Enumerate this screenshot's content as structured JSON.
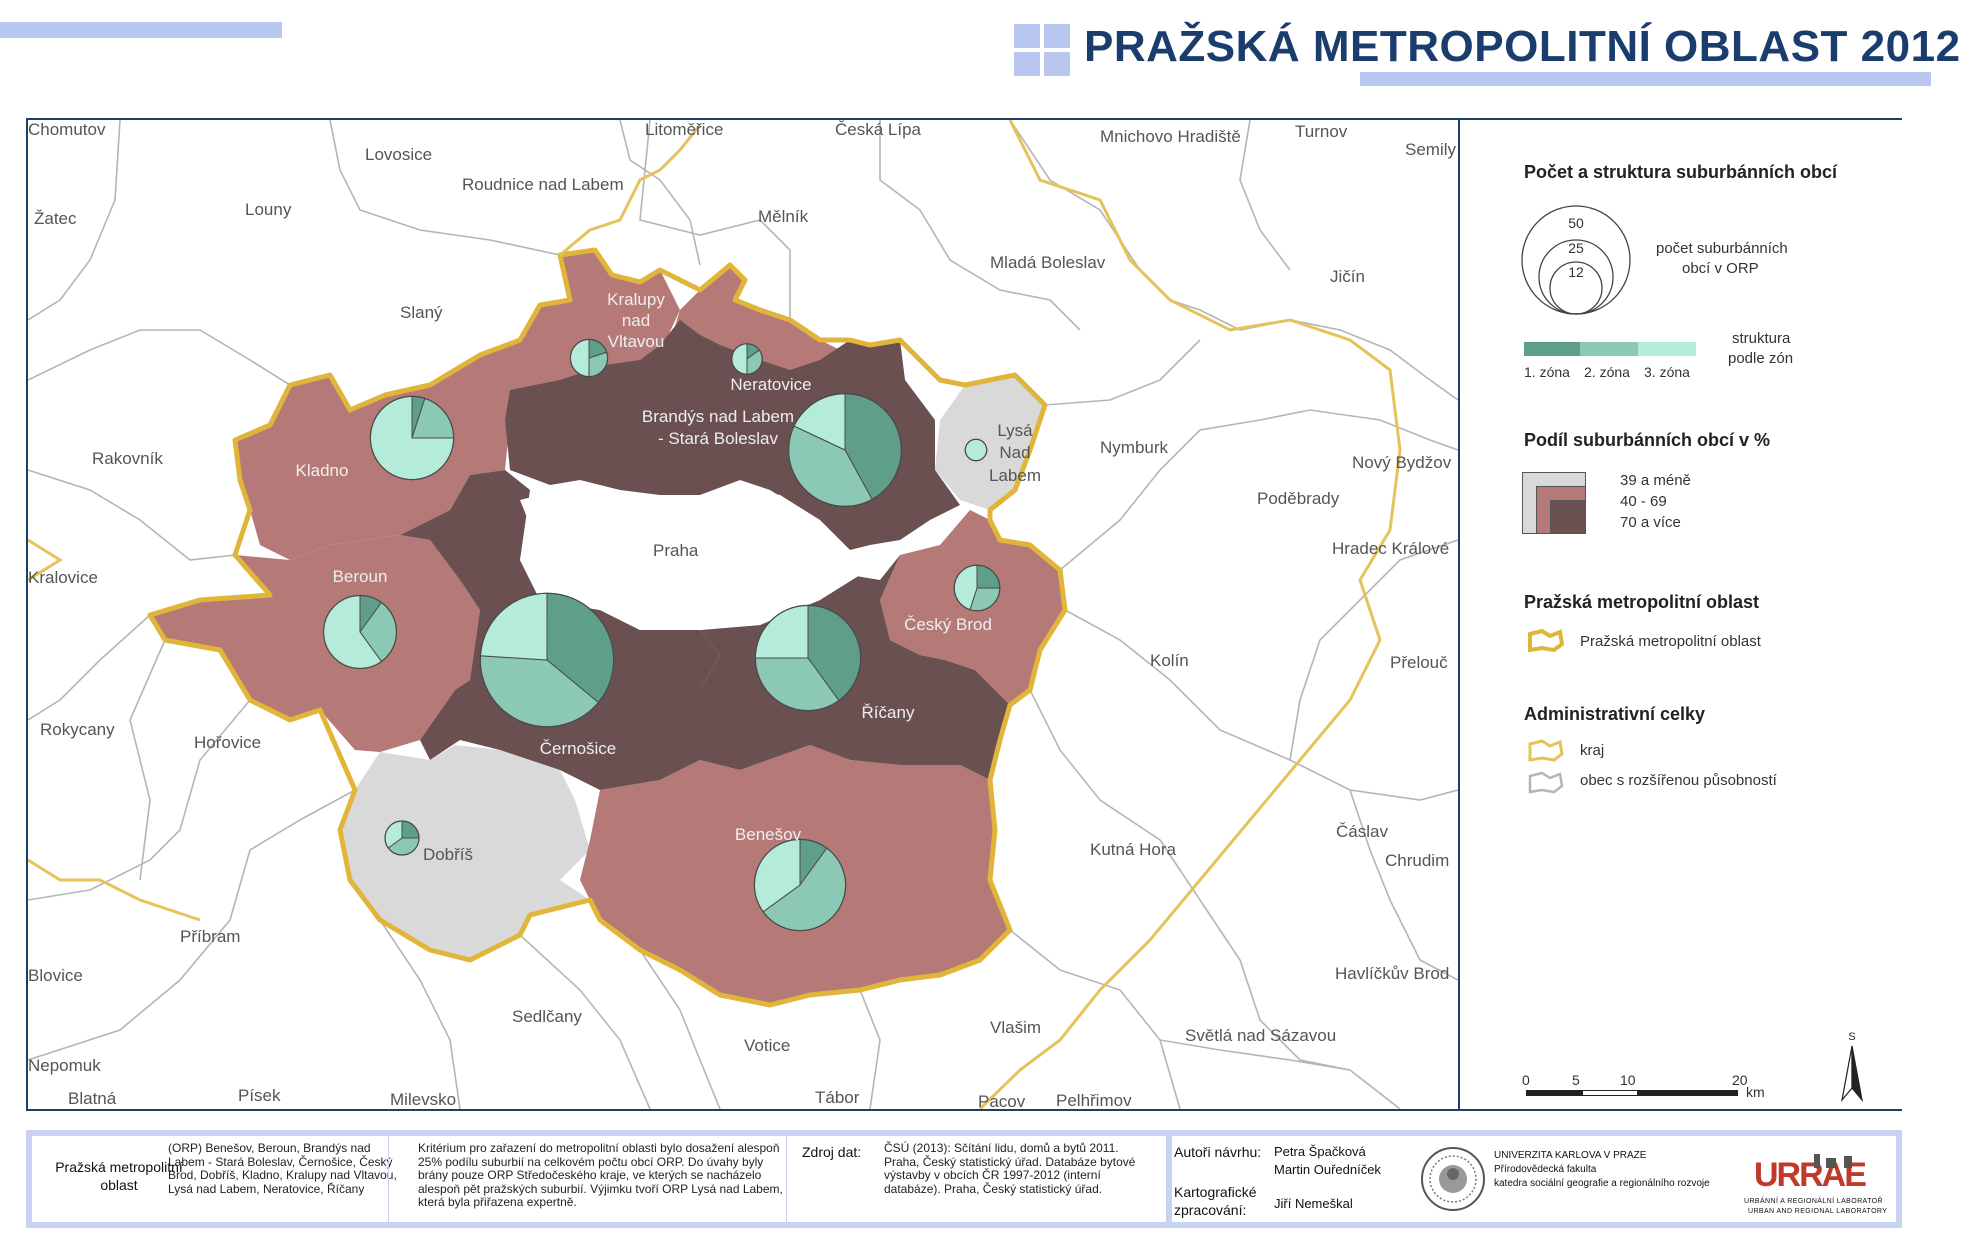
{
  "title": "PRAŽSKÁ METROPOLITNÍ OBLAST 2012",
  "colors": {
    "class_low": "#d9d9d9",
    "class_mid": "#b57a78",
    "class_high": "#6a5050",
    "zone1": "#5f9e88",
    "zone2": "#8cc9b5",
    "zone3": "#b4ecd9",
    "border_metro": "#e0b53a",
    "border_orp": "#aaaaaa"
  },
  "map_labels": {
    "chomutov": "Chomutov",
    "litomerice": "Litoměřice",
    "ceska_lipa": "Česká Lípa",
    "mnichovo": "Mnichovo Hradiště",
    "turnov": "Turnov",
    "semily": "Semily",
    "lovosice": "Lovosice",
    "roudnice": "Roudnice nad Labem",
    "zatec": "Žatec",
    "louny": "Louny",
    "melnik": "Mělník",
    "mlada_boleslav": "Mladá Boleslav",
    "jicin": "Jičín",
    "slany": "Slaný",
    "rakovnik": "Rakovník",
    "nymburk": "Nymburk",
    "novy_bydzov": "Nový Bydžov",
    "podebrady": "Poděbrady",
    "hradec": "Hradec Králové",
    "kralovice": "Kralovice",
    "praha": "Praha",
    "kolin": "Kolín",
    "prelouc": "Přelouč",
    "rokycany": "Rokycany",
    "horovice": "Hořovice",
    "kutna_hora": "Kutná Hora",
    "caslav": "Čáslav",
    "chrudim": "Chrudim",
    "pribram": "Příbram",
    "blovice": "Blovice",
    "havlickuv_brod": "Havlíčkův Brod",
    "sedlcany": "Sedlčany",
    "vlasim": "Vlašim",
    "svetla": "Světlá nad Sázavou",
    "votice": "Votice",
    "nepomuk": "Nepomuk",
    "blatna": "Blatná",
    "pisek": "Písek",
    "milevsko": "Milevsko",
    "tabor": "Tábor",
    "pacov": "Pacov",
    "pelhrimov": "Pelhřimov",
    "kralupy": [
      "Kralupy",
      "nad",
      "Vltavou"
    ],
    "neratovice": "Neratovice",
    "brandys": [
      "Brandýs nad Labem",
      "- Stará Boleslav"
    ],
    "kladno": "Kladno",
    "lysa": [
      "Lysá",
      "Nad",
      "Labem"
    ],
    "beroun": "Beroun",
    "cesky_brod": "Český Brod",
    "cernosice": "Černošice",
    "ricany": "Říčany",
    "dobris": "Dobříš",
    "benesov": "Benešov"
  },
  "pie_charts": [
    {
      "name": "Kladno",
      "total": 30,
      "shares": [
        0.05,
        0.2,
        0.75
      ]
    },
    {
      "name": "Kralupy nad Vltavou",
      "total": 6,
      "shares": [
        0.2,
        0.3,
        0.5
      ]
    },
    {
      "name": "Neratovice",
      "total": 4,
      "shares": [
        0.15,
        0.35,
        0.5
      ]
    },
    {
      "name": "Brandýs nad Labem - Stará Boleslav",
      "total": 55,
      "shares": [
        0.42,
        0.4,
        0.18
      ]
    },
    {
      "name": "Lysá Nad Labem",
      "total": 2,
      "shares": [
        0.0,
        0.0,
        1.0
      ]
    },
    {
      "name": "Beroun",
      "total": 23,
      "shares": [
        0.1,
        0.3,
        0.6
      ]
    },
    {
      "name": "Český Brod",
      "total": 9,
      "shares": [
        0.25,
        0.3,
        0.45
      ]
    },
    {
      "name": "Černošice",
      "total": 77,
      "shares": [
        0.36,
        0.4,
        0.24
      ]
    },
    {
      "name": "Říčany",
      "total": 48,
      "shares": [
        0.4,
        0.35,
        0.25
      ]
    },
    {
      "name": "Dobříš",
      "total": 5,
      "shares": [
        0.25,
        0.4,
        0.35
      ]
    },
    {
      "name": "Benešov",
      "total": 36,
      "shares": [
        0.1,
        0.55,
        0.35
      ]
    }
  ],
  "legend": {
    "section1_title": "Počet a struktura suburbánních obcí",
    "circle_values": [
      "50",
      "25",
      "12"
    ],
    "circle_desc": [
      "počet suburbánních",
      "obcí v ORP"
    ],
    "zones": [
      "1. zóna",
      "2. zóna",
      "3. zóna"
    ],
    "zones_desc": [
      "struktura",
      "podle zón"
    ],
    "section2_title": "Podíl suburbánních obcí v %",
    "classes": [
      "39 a méně",
      "40 - 69",
      "70 a více"
    ],
    "section3_title": "Pražská metropolitní oblast",
    "metro_label": "Pražská metropolitní oblast",
    "section4_title": "Administrativní celky",
    "kraj_label": "kraj",
    "orp_label": "obec s rozšířenou působností",
    "scale_ticks": [
      "0",
      "5",
      "10",
      "20"
    ],
    "scale_unit": "km",
    "north": "S"
  },
  "footer": {
    "label1": "Pražská metropolitní oblast",
    "list": "(ORP) Benešov, Beroun, Brandýs nad Labem - Stará Boleslav, Černošice, Český Brod, Dobříš, Kladno, Kralupy nad Vltavou, Lysá nad Labem, Neratovice, Říčany",
    "criterion": "Kritérium pro zařazení do metropolitní oblasti bylo dosažení alespoň 25% podílu suburbií na celkovém počtu obcí ORP. Do úvahy byly brány pouze ORP Středočeského kraje, ve kterých se nacházelo alespoň pět pražských suburbií. Výjimku tvoří ORP Lysá nad Labem, která byla přiřazena expertně.",
    "source_label": "Zdroj dat:",
    "source": "ČSÚ (2013): Sčítání lidu, domů a bytů 2011. Praha, Český statistický úřad. Databáze bytové výstavby v obcích ČR 1997-2012 (interní databáze). Praha, Český statistický úřad.",
    "authors_label": "Autoři návrhu:",
    "authors": [
      "Petra Špačková",
      "Martin Ouředníček"
    ],
    "carto_label": [
      "Kartografické",
      "zpracování:"
    ],
    "carto": "Jiří Nemeškal",
    "uni": [
      "UNIVERZITA KARLOVA V PRAZE",
      "Přírodovědecká fakulta",
      "katedra sociální geografie a regionálního rozvoje"
    ],
    "lab_sub": [
      "URBÁNNÍ A REGIONÁLNÍ LABORATOŘ",
      "URBAN AND REGIONAL LABORATORY"
    ]
  }
}
